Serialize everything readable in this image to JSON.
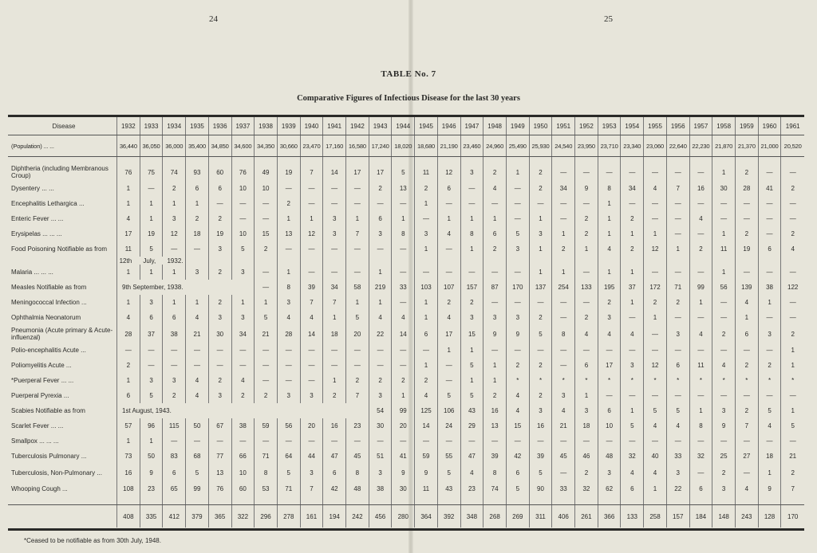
{
  "page_numbers": {
    "left": "24",
    "right": "25"
  },
  "title": "TABLE No. 7",
  "subtitle": "Comparative Figures of Infectious Disease for the last 30 years",
  "table": {
    "header_label": "Disease",
    "years": [
      "1932",
      "1933",
      "1934",
      "1935",
      "1936",
      "1937",
      "1938",
      "1939",
      "1940",
      "1941",
      "1942",
      "1943",
      "1944",
      "1945",
      "1946",
      "1947",
      "1948",
      "1949",
      "1950",
      "1951",
      "1952",
      "1953",
      "1954",
      "1955",
      "1956",
      "1957",
      "1958",
      "1959",
      "1960",
      "1961"
    ],
    "population": {
      "label": "(Population)      ...      ...",
      "values": [
        "36,440",
        "36,050",
        "36,000",
        "35,400",
        "34,850",
        "34,600",
        "34,350",
        "30,660",
        "23,470",
        "17,160",
        "16,580",
        "17,240",
        "18,020",
        "18,680",
        "21,190",
        "23,460",
        "24,960",
        "25,490",
        "25,930",
        "24,540",
        "23,950",
        "23,710",
        "23,340",
        "23,060",
        "22,640",
        "22,230",
        "21,870",
        "21,370",
        "21,000",
        "20,520"
      ]
    },
    "rows": [
      {
        "label": "Diphtheria (including Membranous Croup)",
        "tall": true,
        "values": [
          "76",
          "75",
          "74",
          "93",
          "60",
          "76",
          "49",
          "19",
          "7",
          "14",
          "17",
          "17",
          "5",
          "11",
          "12",
          "3",
          "2",
          "1",
          "2",
          "—",
          "—",
          "—",
          "—",
          "—",
          "—",
          "—",
          "1",
          "2",
          "—",
          "—"
        ]
      },
      {
        "label": "Dysentery      ...      ...",
        "values": [
          "1",
          "—",
          "2",
          "6",
          "6",
          "10",
          "10",
          "—",
          "—",
          "—",
          "—",
          "2",
          "13",
          "2",
          "6",
          "—",
          "4",
          "—",
          "2",
          "34",
          "9",
          "8",
          "34",
          "4",
          "7",
          "16",
          "30",
          "28",
          "41",
          "2"
        ]
      },
      {
        "label": "Encephalitis Lethargica  ...",
        "values": [
          "1",
          "1",
          "1",
          "1",
          "—",
          "—",
          "—",
          "2",
          "—",
          "—",
          "—",
          "—",
          "—",
          "1",
          "—",
          "—",
          "—",
          "—",
          "—",
          "—",
          "—",
          "1",
          "—",
          "—",
          "—",
          "—",
          "—",
          "—",
          "—",
          "—"
        ]
      },
      {
        "label": "Enteric Fever      ...      ...",
        "values": [
          "4",
          "1",
          "3",
          "2",
          "2",
          "—",
          "—",
          "1",
          "1",
          "3",
          "1",
          "6",
          "1",
          "—",
          "1",
          "1",
          "1",
          "—",
          "1",
          "—",
          "2",
          "1",
          "2",
          "—",
          "—",
          "4",
          "—",
          "—",
          "—",
          "—"
        ]
      },
      {
        "label": "Erysipelas ...      ...      ...",
        "values": [
          "17",
          "19",
          "12",
          "18",
          "19",
          "10",
          "15",
          "13",
          "12",
          "3",
          "7",
          "3",
          "8",
          "3",
          "4",
          "8",
          "6",
          "5",
          "3",
          "1",
          "2",
          "1",
          "1",
          "1",
          "—",
          "—",
          "1",
          "2",
          "—",
          "2"
        ]
      },
      {
        "label": "Food Poisoning  Notifiable as from",
        "values": [
          "11",
          "5",
          "—",
          "—",
          "3",
          "5",
          "2",
          "—",
          "—",
          "—",
          "—",
          "—",
          "—",
          "1",
          "—",
          "1",
          "2",
          "3",
          "1",
          "2",
          "1",
          "4",
          "2",
          "12",
          "1",
          "2",
          "11",
          "19",
          "6",
          "4"
        ],
        "subnote": "12th July, 1932."
      },
      {
        "label": "Malaria      ...      ...      ...",
        "values": [
          "1",
          "1",
          "1",
          "3",
          "2",
          "3",
          "—",
          "1",
          "—",
          "—",
          "—",
          "1",
          "—",
          "—",
          "—",
          "—",
          "—",
          "—",
          "1",
          "1",
          "—",
          "1",
          "1",
          "—",
          "—",
          "—",
          "1",
          "—",
          "—",
          "—"
        ]
      },
      {
        "label": "Measles  Notifiable as from",
        "note": "9th September, 1938.",
        "values": [
          null,
          null,
          null,
          null,
          null,
          null,
          "—",
          "8",
          "39",
          "34",
          "58",
          "219",
          "33",
          "103",
          "107",
          "157",
          "87",
          "170",
          "137",
          "254",
          "133",
          "195",
          "37",
          "172",
          "71",
          "99",
          "56",
          "139",
          "38",
          "122"
        ]
      },
      {
        "label": "Meningococcal Infection ...",
        "values": [
          "1",
          "3",
          "1",
          "1",
          "2",
          "1",
          "1",
          "3",
          "7",
          "7",
          "1",
          "1",
          "—",
          "1",
          "2",
          "2",
          "—",
          "—",
          "—",
          "—",
          "—",
          "2",
          "1",
          "2",
          "2",
          "1",
          "—",
          "4",
          "1",
          "—"
        ]
      },
      {
        "label": "Ophthalmia Neonatorum",
        "values": [
          "4",
          "6",
          "6",
          "4",
          "3",
          "3",
          "5",
          "4",
          "4",
          "1",
          "5",
          "4",
          "4",
          "1",
          "4",
          "3",
          "3",
          "3",
          "2",
          "—",
          "2",
          "3",
          "—",
          "1",
          "—",
          "—",
          "—",
          "1",
          "—",
          "—"
        ]
      },
      {
        "label": "Pneumonia (Acute primary & Acute-influenzal)",
        "tall": true,
        "values": [
          "28",
          "37",
          "38",
          "21",
          "30",
          "34",
          "21",
          "28",
          "14",
          "18",
          "20",
          "22",
          "14",
          "6",
          "17",
          "15",
          "9",
          "9",
          "5",
          "8",
          "4",
          "4",
          "4",
          "—",
          "3",
          "4",
          "2",
          "6",
          "3",
          "2"
        ]
      },
      {
        "label": "Polio-encephalitis Acute ...",
        "values": [
          "—",
          "—",
          "—",
          "—",
          "—",
          "—",
          "—",
          "—",
          "—",
          "—",
          "—",
          "—",
          "—",
          "—",
          "1",
          "1",
          "—",
          "—",
          "—",
          "—",
          "—",
          "—",
          "—",
          "—",
          "—",
          "—",
          "—",
          "—",
          "—",
          "1"
        ]
      },
      {
        "label": "Poliomyelitis Acute      ...",
        "values": [
          "2",
          "—",
          "—",
          "—",
          "—",
          "—",
          "—",
          "—",
          "—",
          "—",
          "—",
          "—",
          "—",
          "1",
          "—",
          "5",
          "1",
          "2",
          "2",
          "—",
          "6",
          "17",
          "3",
          "12",
          "6",
          "11",
          "4",
          "2",
          "2",
          "1"
        ]
      },
      {
        "label": "*Puerperal Fever ...      ...",
        "values": [
          "1",
          "3",
          "3",
          "4",
          "2",
          "4",
          "—",
          "—",
          "—",
          "1",
          "2",
          "2",
          "2",
          "2",
          "—",
          "1",
          "1",
          "*",
          "*",
          "*",
          "*",
          "*",
          "*",
          "*",
          "*",
          "*",
          "*",
          "*",
          "*",
          "*"
        ]
      },
      {
        "label": "Puerperal Pyrexia      ...",
        "values": [
          "6",
          "5",
          "2",
          "4",
          "3",
          "2",
          "2",
          "3",
          "3",
          "2",
          "7",
          "3",
          "1",
          "4",
          "5",
          "5",
          "2",
          "4",
          "2",
          "3",
          "1",
          "—",
          "—",
          "—",
          "—",
          "—",
          "—",
          "—",
          "—",
          "—"
        ]
      },
      {
        "label": "Scabies  Notifiable as from",
        "note": "1st August, 1943.",
        "values": [
          null,
          null,
          null,
          null,
          null,
          null,
          null,
          null,
          null,
          null,
          null,
          "54",
          "99",
          "125",
          "106",
          "43",
          "16",
          "4",
          "3",
          "4",
          "3",
          "6",
          "1",
          "5",
          "5",
          "1",
          "3",
          "2",
          "5",
          "1"
        ]
      },
      {
        "label": "Scarlet Fever      ...      ...",
        "values": [
          "57",
          "96",
          "115",
          "50",
          "67",
          "38",
          "59",
          "56",
          "20",
          "16",
          "23",
          "30",
          "20",
          "14",
          "24",
          "29",
          "13",
          "15",
          "16",
          "21",
          "18",
          "10",
          "5",
          "4",
          "4",
          "8",
          "9",
          "7",
          "4",
          "5"
        ]
      },
      {
        "label": "Smallpox ...      ...      ...",
        "values": [
          "1",
          "1",
          "—",
          "—",
          "—",
          "—",
          "—",
          "—",
          "—",
          "—",
          "—",
          "—",
          "—",
          "—",
          "—",
          "—",
          "—",
          "—",
          "—",
          "—",
          "—",
          "—",
          "—",
          "—",
          "—",
          "—",
          "—",
          "—",
          "—",
          "—"
        ]
      },
      {
        "label": "Tuberculosis Pulmonary ...",
        "values": [
          "73",
          "50",
          "83",
          "68",
          "77",
          "66",
          "71",
          "64",
          "44",
          "47",
          "45",
          "51",
          "41",
          "59",
          "55",
          "47",
          "39",
          "42",
          "39",
          "45",
          "46",
          "48",
          "32",
          "40",
          "33",
          "32",
          "25",
          "27",
          "18",
          "21"
        ]
      },
      {
        "label": "Tuberculosis, Non-Pulmonary  ...",
        "tall": true,
        "values": [
          "16",
          "9",
          "6",
          "5",
          "13",
          "10",
          "8",
          "5",
          "3",
          "6",
          "8",
          "3",
          "9",
          "9",
          "5",
          "4",
          "8",
          "6",
          "5",
          "—",
          "2",
          "3",
          "4",
          "4",
          "3",
          "—",
          "2",
          "—",
          "1",
          "2"
        ]
      },
      {
        "label": "Whooping Cough      ...",
        "values": [
          "108",
          "23",
          "65",
          "99",
          "76",
          "60",
          "53",
          "71",
          "7",
          "42",
          "48",
          "38",
          "30",
          "11",
          "43",
          "23",
          "74",
          "5",
          "90",
          "33",
          "32",
          "62",
          "6",
          "1",
          "22",
          "6",
          "3",
          "4",
          "9",
          "7"
        ]
      }
    ],
    "totals": [
      "408",
      "335",
      "412",
      "379",
      "365",
      "322",
      "296",
      "278",
      "161",
      "194",
      "242",
      "456",
      "280",
      "364",
      "392",
      "348",
      "268",
      "269",
      "311",
      "406",
      "261",
      "366",
      "133",
      "258",
      "157",
      "184",
      "148",
      "243",
      "128",
      "170"
    ]
  },
  "footnote": "*Ceased to be notifiable as from 30th July, 1948."
}
